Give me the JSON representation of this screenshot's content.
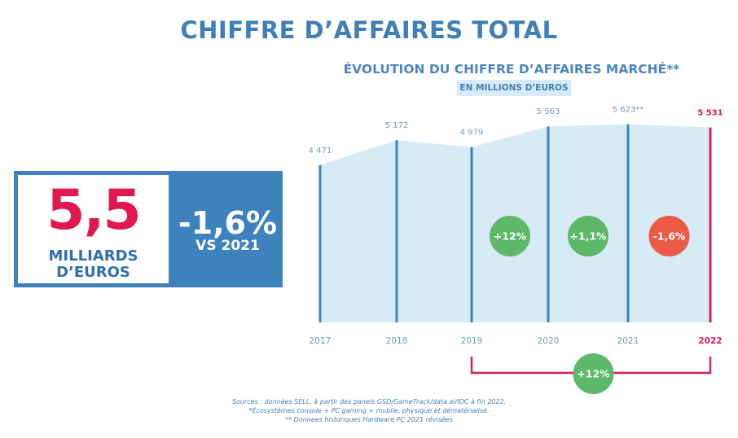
{
  "title": "CHIFFRE D’AFFAIRES TOTAL",
  "kpi": {
    "value": "5,5",
    "unit_line1": "MILLIARDS",
    "unit_line2": "D’EUROS",
    "change": "-1,6%",
    "comparison": "VS 2021"
  },
  "chart_data": {
    "type": "area",
    "title": "ÉVOLUTION DU CHIFFRE D’AFFAIRES MARCHÉ**",
    "subtitle": "EN MILLIONS D’EUROS",
    "x": [
      "2017",
      "2018",
      "2019",
      "2020",
      "2021",
      "2022"
    ],
    "values": [
      4471,
      5172,
      4979,
      5563,
      5623,
      5531
    ],
    "point_labels": [
      "4 471",
      "5 172",
      "4 979",
      "5 563",
      "5 623**",
      "5 531"
    ],
    "growth_badges": [
      {
        "between": [
          "2019",
          "2020"
        ],
        "label": "+12%",
        "trend": "up"
      },
      {
        "between": [
          "2020",
          "2021"
        ],
        "label": "+1,1%",
        "trend": "up"
      },
      {
        "between": [
          "2021",
          "2022"
        ],
        "label": "-1,6%",
        "trend": "down"
      }
    ],
    "range_badge": {
      "from": "2019",
      "to": "2022",
      "label": "+12%"
    },
    "highlight_year": "2022",
    "colors": {
      "area": "#d6ebf6",
      "line": "#3d82bd",
      "highlight": "#d81b5a",
      "up": "#5db86a",
      "down": "#ea5a45",
      "label": "#6f9cc9"
    }
  },
  "footnotes": [
    "Sources : données SELL, à partir des panels GSD/GameTrack/data.ai/IDC à fin 2022.",
    "*Écosystèmes console + PC gaming + mobile, physique et dématérialisé.",
    "** Donnees historiques Hardware PC 2021 révisées"
  ]
}
